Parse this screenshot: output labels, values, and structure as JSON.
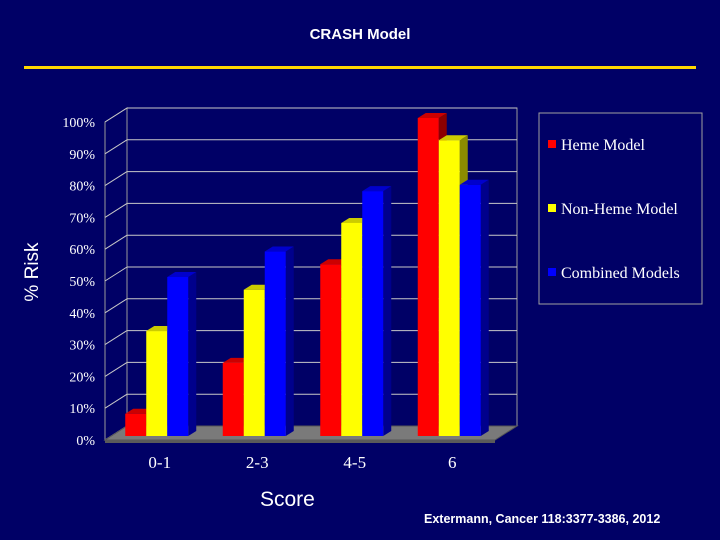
{
  "slide": {
    "title": "CRASH Model",
    "citation": "Extermann, Cancer 118:3377-3386, 2012"
  },
  "chart_data": {
    "type": "bar",
    "title": "CRASH Model",
    "xlabel": "Score",
    "ylabel": "% Risk",
    "categories": [
      "0-1",
      "2-3",
      "4-5",
      "6"
    ],
    "ylim": [
      0,
      100
    ],
    "yticks": [
      "0%",
      "10%",
      "20%",
      "30%",
      "40%",
      "50%",
      "60%",
      "70%",
      "80%",
      "90%",
      "100%"
    ],
    "grid": true,
    "legend_position": "right",
    "series": [
      {
        "name": "Heme Model",
        "color": "#ff0000",
        "values": [
          7,
          23,
          54,
          100
        ]
      },
      {
        "name": "Non-Heme Model",
        "color": "#ffff00",
        "values": [
          33,
          46,
          67,
          93
        ]
      },
      {
        "name": "Combined Models",
        "color": "#0000ff",
        "values": [
          50,
          58,
          77,
          79
        ]
      }
    ]
  }
}
